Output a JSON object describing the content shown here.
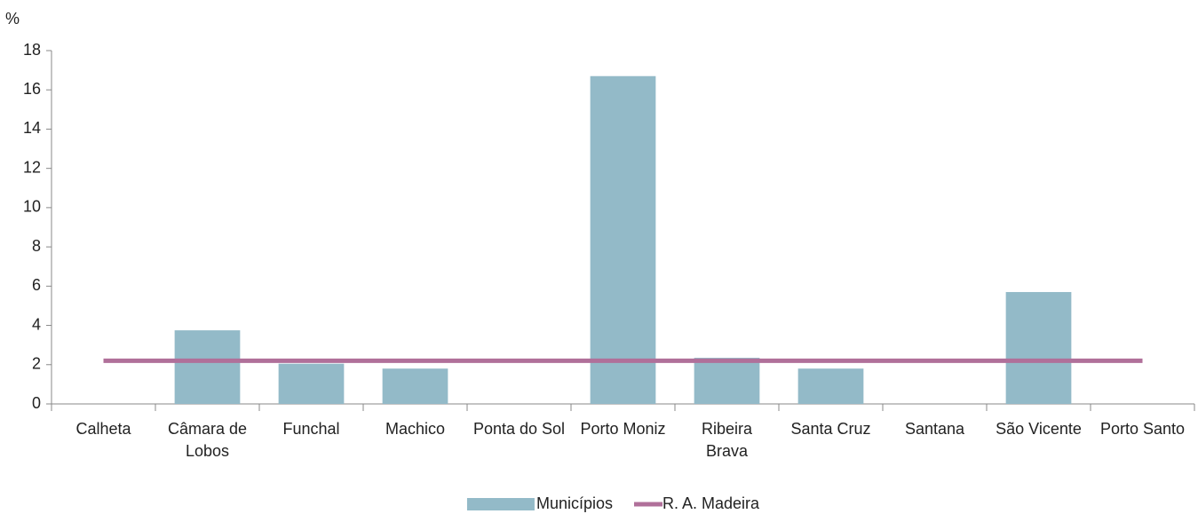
{
  "chart_data": {
    "type": "bar",
    "y_unit_label": "%",
    "categories": [
      "Calheta",
      "Câmara de Lobos",
      "Funchal",
      "Machico",
      "Ponta do Sol",
      "Porto Moniz",
      "Ribeira Brava",
      "Santa Cruz",
      "Santana",
      "São Vicente",
      "Porto Santo"
    ],
    "series": [
      {
        "name": "Municípios",
        "type": "bar",
        "color": "#93bac8",
        "values": [
          0,
          3.75,
          2.05,
          1.8,
          0,
          16.7,
          2.35,
          1.8,
          0,
          5.7,
          0
        ]
      },
      {
        "name": "R. A. Madeira",
        "type": "line",
        "color": "#b0709a",
        "values": [
          2.2,
          2.2,
          2.2,
          2.2,
          2.2,
          2.2,
          2.2,
          2.2,
          2.2,
          2.2,
          2.2
        ]
      }
    ],
    "ylim": [
      0,
      18
    ],
    "yticks": [
      0,
      2,
      4,
      6,
      8,
      10,
      12,
      14,
      16,
      18
    ],
    "grid": false,
    "legend": "bottom"
  }
}
